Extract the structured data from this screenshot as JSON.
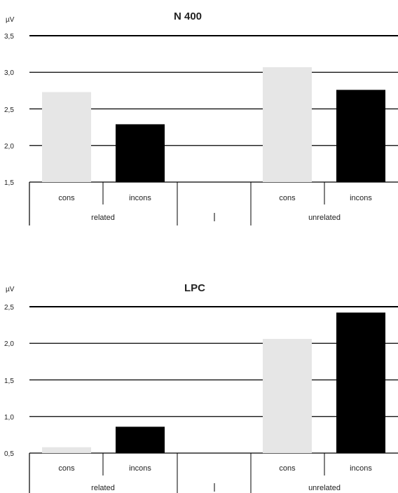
{
  "chart_data": [
    {
      "type": "bar",
      "title": "N 400",
      "ylabel": "µV",
      "ylim": [
        1.5,
        3.5
      ],
      "yticks": [
        "1,5",
        "2,0",
        "2,5",
        "3,0",
        "3,5"
      ],
      "groups": [
        "related",
        "unrelated"
      ],
      "categories": [
        "cons",
        "incons",
        "cons",
        "incons"
      ],
      "values": [
        2.73,
        2.29,
        3.07,
        2.76
      ],
      "bar_colors": [
        "#e6e6e6",
        "#000000",
        "#e6e6e6",
        "#000000"
      ],
      "grid": true
    },
    {
      "type": "bar",
      "title": "LPC",
      "ylabel": "µV",
      "ylim": [
        0.5,
        2.5
      ],
      "yticks": [
        "0,5",
        "1,0",
        "1,5",
        "2,0",
        "2,5"
      ],
      "groups": [
        "related",
        "unrelated"
      ],
      "categories": [
        "cons",
        "incons",
        "cons",
        "incons"
      ],
      "values": [
        0.58,
        0.86,
        2.06,
        2.42
      ],
      "bar_colors": [
        "#e6e6e6",
        "#000000",
        "#e6e6e6",
        "#000000"
      ],
      "grid": true
    }
  ]
}
